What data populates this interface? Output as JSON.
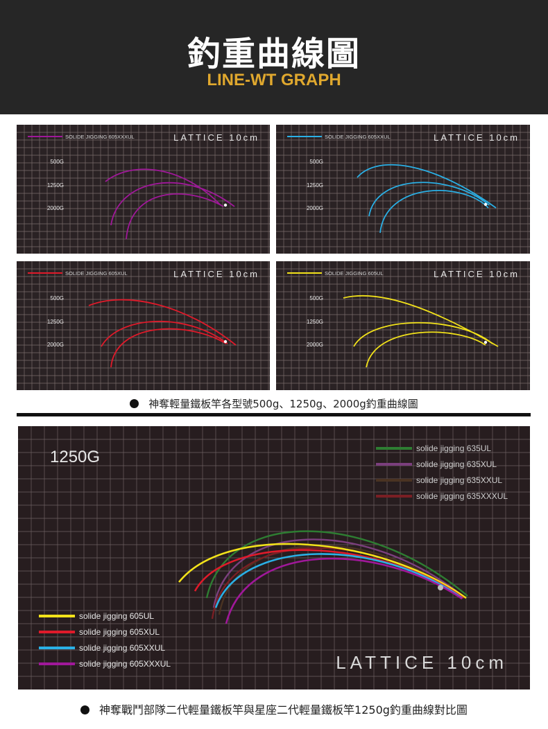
{
  "header": {
    "title": "釣重曲線圖",
    "subtitle": "LINE-WT GRAPH",
    "bg_color": "#262626",
    "subtitle_color": "#e0a82e"
  },
  "caption_top": "神奪輕量鐵板竿各型號500g、1250g、2000g釣重曲線圖",
  "caption_bottom": "神奪戰鬥部隊二代輕量鐵板竿與星座二代輕量鐵板竿1250g釣重曲線對比圖",
  "chart_data": [
    {
      "type": "line",
      "title": "LATTICE 10cm",
      "series": [
        {
          "name": "SOLIDE JIGGING 605XXXUL",
          "color": "#a0189a"
        }
      ],
      "weight_labels": [
        "500G",
        "1250G",
        "2000G"
      ]
    },
    {
      "type": "line",
      "title": "LATTICE 10cm",
      "series": [
        {
          "name": "SOLIDE JIGGING 605XXUL",
          "color": "#2ab0e6"
        }
      ],
      "weight_labels": [
        "500G",
        "1250G",
        "2000G"
      ]
    },
    {
      "type": "line",
      "title": "LATTICE 10cm",
      "series": [
        {
          "name": "SOLIDE JIGGING 605XUL",
          "color": "#e01a2a"
        }
      ],
      "weight_labels": [
        "500G",
        "1250G",
        "2000G"
      ]
    },
    {
      "type": "line",
      "title": "LATTICE 10cm",
      "series": [
        {
          "name": "SOLIDE JIGGING 605UL",
          "color": "#f2e21a"
        }
      ],
      "weight_labels": [
        "500G",
        "1250G",
        "2000G"
      ]
    },
    {
      "type": "line",
      "title": "LATTICE 10cm",
      "weight_label": "1250G",
      "legend_top_right": [
        {
          "name": "solide jigging 635UL",
          "color": "#2e7d32"
        },
        {
          "name": "solide jigging 635XUL",
          "color": "#7b3f7d"
        },
        {
          "name": "solide jigging 635XXUL",
          "color": "#4a3322"
        },
        {
          "name": "solide jigging 635XXXUL",
          "color": "#7a1f24"
        }
      ],
      "legend_bottom_left": [
        {
          "name": "solide jigging 605UL",
          "color": "#f2e21a"
        },
        {
          "name": "solide jigging 605XUL",
          "color": "#e01a2a"
        },
        {
          "name": "solide jigging 605XXUL",
          "color": "#2ab0e6"
        },
        {
          "name": "solide jigging 605XXXUL",
          "color": "#a0189a"
        }
      ]
    }
  ]
}
